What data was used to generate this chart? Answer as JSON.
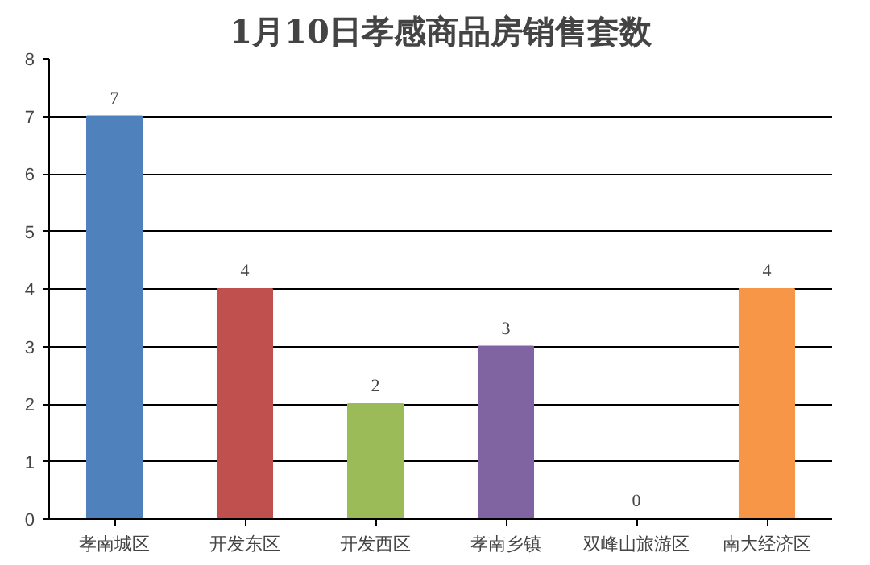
{
  "chart_data": {
    "type": "bar",
    "title": "1月10日孝感商品房销售套数",
    "categories": [
      "孝南城区",
      "开发东区",
      "开发西区",
      "孝南乡镇",
      "双峰山旅游区",
      "南大经济区"
    ],
    "values": [
      7,
      4,
      2,
      3,
      0,
      4
    ],
    "colors": [
      "#4f81bd",
      "#c0504d",
      "#9bbb59",
      "#8064a2",
      "#4bacc6",
      "#f79646"
    ],
    "ylim": [
      0,
      8
    ],
    "yticks": [
      0,
      1,
      2,
      3,
      4,
      5,
      6,
      7,
      8
    ],
    "grid": "y",
    "data_labels": true
  }
}
